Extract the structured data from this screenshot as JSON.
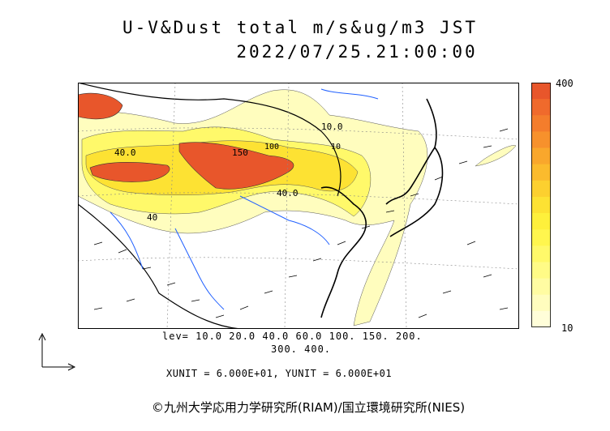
{
  "title": {
    "line1": "U-V&Dust total m/s&ug/m3 JST",
    "line2": "2022/07/25.21:00:00"
  },
  "legend": {
    "top_label": "400",
    "bottom_label": "10",
    "colors": [
      "#e8562b",
      "#f06a2c",
      "#f47d2c",
      "#f7912c",
      "#f9a72c",
      "#fbbb2d",
      "#fcd02f",
      "#fde233",
      "#fef03b",
      "#fff64e",
      "#fff96a",
      "#fffb86",
      "#fffca2",
      "#fffdbe",
      "#fffed9"
    ]
  },
  "levels": {
    "line1": "lev= 10.0 20.0 40.0 60.0 100. 150. 200.",
    "line2": "300. 400."
  },
  "units": "XUNIT = 6.000E+01, YUNIT = 6.000E+01",
  "contour_labels": [
    "40.0",
    "150",
    "40.0",
    "40",
    "10.0",
    "100",
    "10"
  ],
  "copyright": "©九州大学応用力学研究所(RIAM)/国立環境研究所(NIES)"
}
